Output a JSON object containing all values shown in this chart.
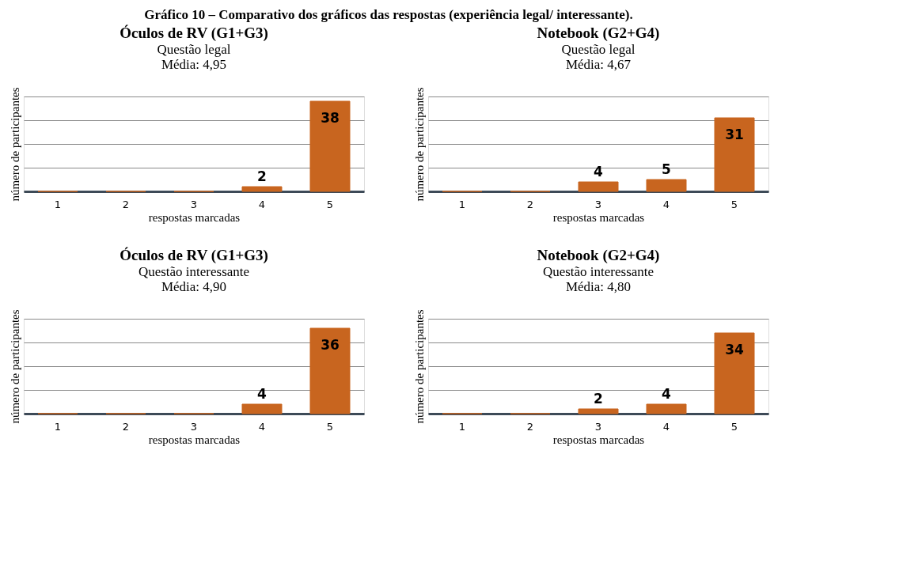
{
  "chart_data": [
    {
      "type": "other",
      "title": "Gráfico 10 – Comparativo dos gráficos das respostas (experiência legal/ interessante)."
    },
    {
      "type": "bar",
      "title": "Óculos de RV (G1+G3)",
      "subtitle": "Questão legal",
      "annotations": [
        "Média: 4,95"
      ],
      "xlabel": "respostas marcadas",
      "ylabel": "número de participantes",
      "categories": [
        "1",
        "2",
        "3",
        "4",
        "5"
      ],
      "values": [
        0,
        0,
        0,
        2,
        38
      ],
      "value_labels": [
        null,
        null,
        null,
        "2",
        "38"
      ],
      "color": "#c8651f",
      "ylim": [
        0,
        40
      ],
      "grid": "y",
      "tick_labels": "x"
    },
    {
      "type": "bar",
      "title": "Notebook (G2+G4)",
      "subtitle": "Questão legal",
      "annotations": [
        "Média: 4,67"
      ],
      "xlabel": "respostas marcadas",
      "ylabel": "número de participantes",
      "categories": [
        "1",
        "2",
        "3",
        "4",
        "5"
      ],
      "values": [
        0,
        0,
        4,
        5,
        31
      ],
      "value_labels": [
        null,
        null,
        "4",
        "5",
        "31"
      ],
      "color": "#c8651f",
      "ylim": [
        0,
        40
      ],
      "grid": "y",
      "tick_labels": "x"
    },
    {
      "type": "bar",
      "title": "Óculos de RV (G1+G3)",
      "subtitle": "Questão interessante",
      "annotations": [
        "Média: 4,90"
      ],
      "xlabel": "respostas marcadas",
      "ylabel": "número de participantes",
      "categories": [
        "1",
        "2",
        "3",
        "4",
        "5"
      ],
      "values": [
        0,
        0,
        0,
        4,
        36
      ],
      "value_labels": [
        null,
        null,
        null,
        "4",
        "36"
      ],
      "color": "#c8651f",
      "ylim": [
        0,
        40
      ],
      "grid": "y",
      "tick_labels": "x"
    },
    {
      "type": "bar",
      "title": "Notebook (G2+G4)",
      "subtitle": "Questão interessante",
      "annotations": [
        "Média: 4,80"
      ],
      "xlabel": "respostas marcadas",
      "ylabel": "número de participantes",
      "categories": [
        "1",
        "2",
        "3",
        "4",
        "5"
      ],
      "values": [
        0,
        0,
        2,
        4,
        34
      ],
      "value_labels": [
        null,
        null,
        "2",
        "4",
        "34"
      ],
      "color": "#c8651f",
      "ylim": [
        0,
        40
      ],
      "grid": "y",
      "tick_labels": "x"
    }
  ]
}
